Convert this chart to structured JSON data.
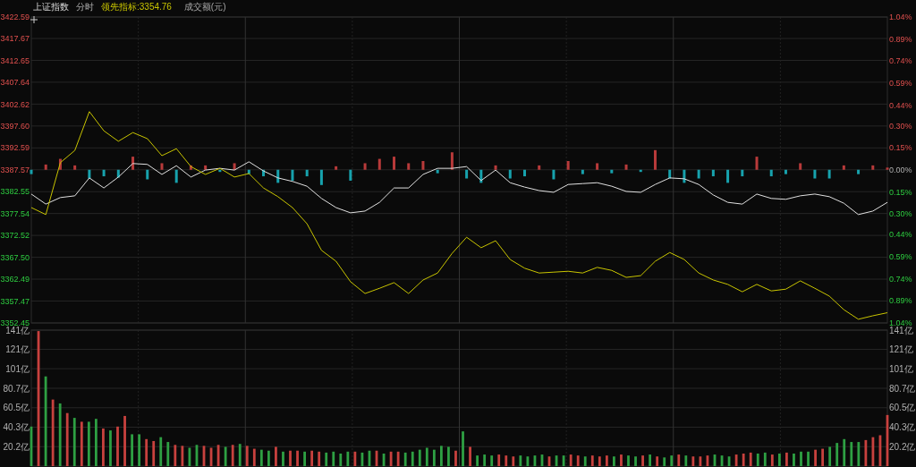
{
  "chart_data": [
    {
      "type": "line",
      "title": "上证指数",
      "subtitle": "分时",
      "categories": [
        null,
        null,
        null,
        null,
        null,
        null,
        null,
        null,
        null,
        null,
        null,
        null,
        null,
        null,
        null,
        null,
        null,
        null,
        null,
        null,
        null,
        null,
        null,
        null,
        null,
        null,
        null,
        null,
        null,
        null,
        null,
        null,
        null,
        null,
        null,
        null,
        null,
        null,
        null,
        null,
        null,
        null,
        null,
        null,
        null,
        null,
        null,
        null,
        null,
        null,
        null,
        null,
        null,
        null,
        null,
        null,
        null,
        null,
        null,
        null
      ],
      "ylim": [
        3352.45,
        3422.59
      ],
      "yticks": [
        3352.45,
        3357.47,
        3362.49,
        {
          "value": 3367.5,
          "label": "3367.50"
        },
        3372.52,
        3377.54,
        3382.55,
        3387.57,
        3392.59,
        {
          "value": 3397.6,
          "label": "3397.60"
        },
        3402.62,
        3407.64,
        3412.65,
        3417.67,
        3422.59
      ],
      "y2lim": [
        -1.04,
        1.04
      ],
      "y2ticks": [
        {
          "value": -1.04,
          "label": "1.04%"
        },
        {
          "value": -0.89,
          "label": "0.89%"
        },
        {
          "value": -0.74,
          "label": "0.74%"
        },
        {
          "value": -0.59,
          "label": "0.59%"
        },
        {
          "value": -0.44,
          "label": "0.44%"
        },
        {
          "value": -0.3,
          "label": "0.30%"
        },
        {
          "value": -0.15,
          "label": "0.15%"
        },
        {
          "value": 0,
          "label": "0.00%"
        },
        {
          "value": 0.15,
          "label": "0.15%"
        },
        {
          "value": 0.3,
          "label": "0.30%"
        },
        {
          "value": 0.44,
          "label": "0.44%"
        },
        {
          "value": 0.59,
          "label": "0.59%"
        },
        {
          "value": 0.74,
          "label": "0.74%"
        },
        {
          "value": 0.89,
          "label": "0.89%"
        },
        {
          "value": 1.04,
          "label": "1.04%"
        }
      ],
      "grid": true,
      "legend": "top left",
      "annotations": [
        "成交额(元)"
      ],
      "series": [
        {
          "type": "bar",
          "base": [
            3387.57,
            3387.57,
            3387.57,
            3387.57,
            3387.57,
            3387.57,
            3387.57,
            3387.57,
            3387.57,
            3387.57,
            3387.57,
            3387.57,
            3387.57,
            3387.57,
            3387.57,
            3387.57,
            3387.57,
            3387.57,
            3387.57,
            3387.57,
            3387.57,
            3387.57,
            3387.57,
            3387.57,
            3387.57,
            3387.57,
            3387.57,
            3387.57,
            3387.57,
            3387.57,
            3387.57,
            3387.57,
            3387.57,
            3387.57,
            3387.57,
            3387.57,
            3387.57,
            3387.57,
            3387.57,
            3387.57,
            3387.57,
            3387.57,
            3387.57,
            3387.57,
            3387.57,
            3387.57,
            3387.57,
            3387.57,
            3387.57,
            3387.57,
            3387.57,
            3387.57,
            3387.57,
            3387.57,
            3387.57,
            3387.57,
            3387.57,
            3387.57,
            3387.57,
            3387.57
          ],
          "values": [
            -1.0,
            1.2,
            2.5,
            1.0,
            -2.0,
            -1.5,
            -1.8,
            3.0,
            -2.2,
            1.5,
            -3.0,
            1.0,
            1.0,
            -0.5,
            1.5,
            -1.0,
            -1.5,
            -3.0,
            -2.5,
            -1.5,
            -3.5,
            0.8,
            -2.5,
            1.5,
            2.5,
            3.0,
            1.5,
            2.0,
            -0.8,
            4.0,
            -2.0,
            -3.0,
            1.0,
            -2.0,
            -1.5,
            1.0,
            -2.2,
            2.0,
            -1.0,
            1.5,
            -0.8,
            1.2,
            -0.5,
            4.5,
            -2.0,
            -3.0,
            -2.0,
            -1.5,
            -3.0,
            -1.5,
            3.0,
            -1.5,
            -1.0,
            1.5,
            -2.0,
            -2.0,
            1.0,
            -1.0,
            1.0,
            0.5
          ],
          "colors": [
            "#17a2ad",
            "#b83a3a",
            "#b83a3a",
            "#b83a3a",
            "#17a2ad",
            "#17a2ad",
            "#17a2ad",
            "#b83a3a",
            "#17a2ad",
            "#b83a3a",
            "#17a2ad",
            "#b83a3a",
            "#b83a3a",
            "#17a2ad",
            "#b83a3a",
            "#17a2ad",
            "#17a2ad",
            "#17a2ad",
            "#17a2ad",
            "#17a2ad",
            "#17a2ad",
            "#b83a3a",
            "#17a2ad",
            "#b83a3a",
            "#b83a3a",
            "#b83a3a",
            "#b83a3a",
            "#b83a3a",
            "#17a2ad",
            "#b83a3a",
            "#17a2ad",
            "#17a2ad",
            "#b83a3a",
            "#17a2ad",
            "#17a2ad",
            "#b83a3a",
            "#17a2ad",
            "#b83a3a",
            "#17a2ad",
            "#b83a3a",
            "#17a2ad",
            "#b83a3a",
            "#17a2ad",
            "#b83a3a",
            "#17a2ad",
            "#17a2ad",
            "#17a2ad",
            "#17a2ad",
            "#17a2ad",
            "#17a2ad",
            "#b83a3a",
            "#17a2ad",
            "#17a2ad",
            "#b83a3a",
            "#17a2ad",
            "#17a2ad",
            "#b83a3a",
            "#17a2ad",
            "#b83a3a",
            "#b83a3a"
          ]
        },
        {
          "color": "#e0e0e0",
          "values": [
            3382.0,
            3379.7,
            3381.2,
            3381.6,
            3385.7,
            3383.4,
            3385.9,
            3389.0,
            3388.8,
            3386.5,
            3388.5,
            3385.9,
            3387.5,
            3387.9,
            3387.5,
            3389.4,
            3387.3,
            3385.7,
            3384.9,
            3383.8,
            3381.0,
            3378.9,
            3377.7,
            3378.1,
            3380.1,
            3383.4,
            3383.4,
            3386.5,
            3387.9,
            3387.9,
            3388.3,
            3385.1,
            3387.5,
            3384.6,
            3383.6,
            3382.8,
            3382.4,
            3384.2,
            3384.4,
            3384.6,
            3383.8,
            3382.6,
            3382.4,
            3384.2,
            3385.7,
            3385.5,
            3384.2,
            3381.8,
            3380.1,
            3379.7,
            3382.0,
            3381.0,
            3380.8,
            3381.6,
            3382.0,
            3381.4,
            3379.9,
            3377.3,
            3378.1,
            3380.1
          ]
        },
        {
          "name": "领先指标:3354.76",
          "color": "#c8c400",
          "values": [
            3378.9,
            3377.3,
            3389.2,
            3392.0,
            3400.9,
            3396.5,
            3394.1,
            3396.1,
            3394.7,
            3390.8,
            3392.4,
            3388.3,
            3386.5,
            3387.9,
            3385.9,
            3386.7,
            3383.4,
            3381.4,
            3378.9,
            3375.2,
            3369.1,
            3366.6,
            3361.9,
            3359.2,
            3360.4,
            3361.7,
            3359.2,
            3362.3,
            3363.9,
            3368.4,
            3372.1,
            3369.7,
            3371.3,
            3367.0,
            3365.0,
            3363.9,
            3364.1,
            3364.3,
            3363.9,
            3365.2,
            3364.5,
            3362.9,
            3363.3,
            3366.6,
            3368.6,
            3367.0,
            3363.9,
            3362.3,
            3361.3,
            3359.6,
            3361.3,
            3359.8,
            3360.2,
            3362.1,
            3360.4,
            3358.6,
            3355.5,
            3353.3,
            3354.1,
            3354.8
          ]
        }
      ]
    },
    {
      "type": "bar",
      "categories": [
        null,
        null,
        null,
        null,
        null,
        null,
        null,
        null,
        null,
        null,
        null,
        null,
        null,
        null,
        null,
        null,
        null,
        null,
        null,
        null,
        null,
        null,
        null,
        null,
        null,
        null,
        null,
        null,
        null,
        null,
        null,
        null,
        null,
        null,
        null,
        null,
        null,
        null,
        null,
        null,
        null,
        null,
        null,
        null,
        null,
        null,
        null,
        null,
        null,
        null,
        null,
        null,
        null,
        null,
        null,
        null,
        null,
        null,
        null,
        null,
        null,
        null,
        null,
        null,
        null,
        null,
        null,
        null,
        null,
        null,
        null,
        null,
        null,
        null,
        null,
        null,
        null,
        null,
        null,
        null,
        null,
        null,
        null,
        null,
        null,
        null,
        null,
        null,
        null,
        null,
        null,
        null,
        null,
        null,
        null,
        null,
        null,
        null,
        null,
        null,
        null,
        null,
        null,
        null,
        null,
        null,
        null,
        null,
        null,
        null,
        null,
        null,
        null,
        null,
        null,
        null,
        null,
        null,
        null,
        null
      ],
      "ylim": [
        0,
        141
      ],
      "yticks": [
        {
          "value": 20.2,
          "label": "20.2亿"
        },
        {
          "value": 40.3,
          "label": "40.3亿"
        },
        {
          "value": 60.5,
          "label": "60.5亿"
        },
        {
          "value": 80.7,
          "label": "80.7亿"
        },
        {
          "value": 101,
          "label": "101亿"
        },
        {
          "value": 121,
          "label": "121亿"
        },
        {
          "value": 141,
          "label": "141亿"
        }
      ],
      "y2lim": [
        0,
        141
      ],
      "y2ticks": [
        {
          "value": 20.2,
          "label": "20.2亿"
        },
        {
          "value": 40.3,
          "label": "40.3亿"
        },
        {
          "value": 60.5,
          "label": "60.5亿"
        },
        {
          "value": 80.7,
          "label": "80.7亿"
        },
        {
          "value": 101,
          "label": "101亿"
        },
        {
          "value": 121,
          "label": "121亿"
        },
        {
          "value": 141,
          "label": "141亿"
        }
      ],
      "grid": true,
      "values": [
        41,
        140,
        93,
        69,
        65,
        55,
        50,
        46,
        46,
        49,
        39,
        37,
        41,
        52,
        33,
        33,
        28,
        26,
        30,
        25,
        22,
        21,
        19,
        22,
        21,
        19,
        22,
        20,
        22,
        23,
        21,
        18,
        17,
        16,
        20,
        15,
        16,
        16,
        15,
        16,
        15,
        14,
        15,
        13,
        15,
        15,
        14,
        16,
        16,
        13,
        15,
        15,
        14,
        15,
        17,
        19,
        17,
        21,
        20,
        16,
        36,
        20,
        11,
        12,
        11,
        12,
        11,
        10,
        11,
        10,
        11,
        12,
        10,
        11,
        11,
        12,
        11,
        10,
        11,
        10,
        11,
        10,
        12,
        11,
        10,
        11,
        12,
        10,
        9,
        11,
        12,
        11,
        10,
        10,
        11,
        12,
        11,
        10,
        12,
        13,
        14,
        13,
        14,
        12,
        13,
        14,
        13,
        15,
        15,
        17,
        18,
        20,
        24,
        28,
        25,
        25,
        27,
        30,
        32,
        53
      ],
      "colors": [
        "#2ea043",
        "#c8413e",
        "#2ea043",
        "#c8413e",
        "#2ea043",
        "#c8413e",
        "#2ea043",
        "#c8413e",
        "#2ea043",
        "#2ea043",
        "#c8413e",
        "#2ea043",
        "#c8413e",
        "#c8413e",
        "#2ea043",
        "#2ea043",
        "#c8413e",
        "#c8413e",
        "#2ea043",
        "#2ea043",
        "#c8413e",
        "#c8413e",
        "#2ea043",
        "#2ea043",
        "#c8413e",
        "#c8413e",
        "#c8413e",
        "#2ea043",
        "#c8413e",
        "#2ea043",
        "#c8413e",
        "#c8413e",
        "#2ea043",
        "#2ea043",
        "#c8413e",
        "#2ea043",
        "#c8413e",
        "#c8413e",
        "#2ea043",
        "#c8413e",
        "#c8413e",
        "#2ea043",
        "#2ea043",
        "#2ea043",
        "#2ea043",
        "#c8413e",
        "#2ea043",
        "#2ea043",
        "#c8413e",
        "#2ea043",
        "#c8413e",
        "#c8413e",
        "#2ea043",
        "#2ea043",
        "#2ea043",
        "#2ea043",
        "#2ea043",
        "#2ea043",
        "#2ea043",
        "#c8413e",
        "#2ea043",
        "#c8413e",
        "#2ea043",
        "#2ea043",
        "#2ea043",
        "#c8413e",
        "#c8413e",
        "#c8413e",
        "#2ea043",
        "#2ea043",
        "#2ea043",
        "#2ea043",
        "#c8413e",
        "#2ea043",
        "#2ea043",
        "#c8413e",
        "#c8413e",
        "#2ea043",
        "#c8413e",
        "#c8413e",
        "#c8413e",
        "#2ea043",
        "#c8413e",
        "#2ea043",
        "#2ea043",
        "#c8413e",
        "#2ea043",
        "#c8413e",
        "#2ea043",
        "#2ea043",
        "#c8413e",
        "#2ea043",
        "#c8413e",
        "#c8413e",
        "#c8413e",
        "#2ea043",
        "#2ea043",
        "#2ea043",
        "#c8413e",
        "#c8413e",
        "#c8413e",
        "#2ea043",
        "#2ea043",
        "#c8413e",
        "#2ea043",
        "#c8413e",
        "#2ea043",
        "#2ea043",
        "#2ea043",
        "#c8413e",
        "#c8413e",
        "#2ea043",
        "#2ea043",
        "#2ea043",
        "#2ea043",
        "#2ea043",
        "#c8413e",
        "#c8413e",
        "#c8413e",
        "#c8413e"
      ]
    }
  ]
}
